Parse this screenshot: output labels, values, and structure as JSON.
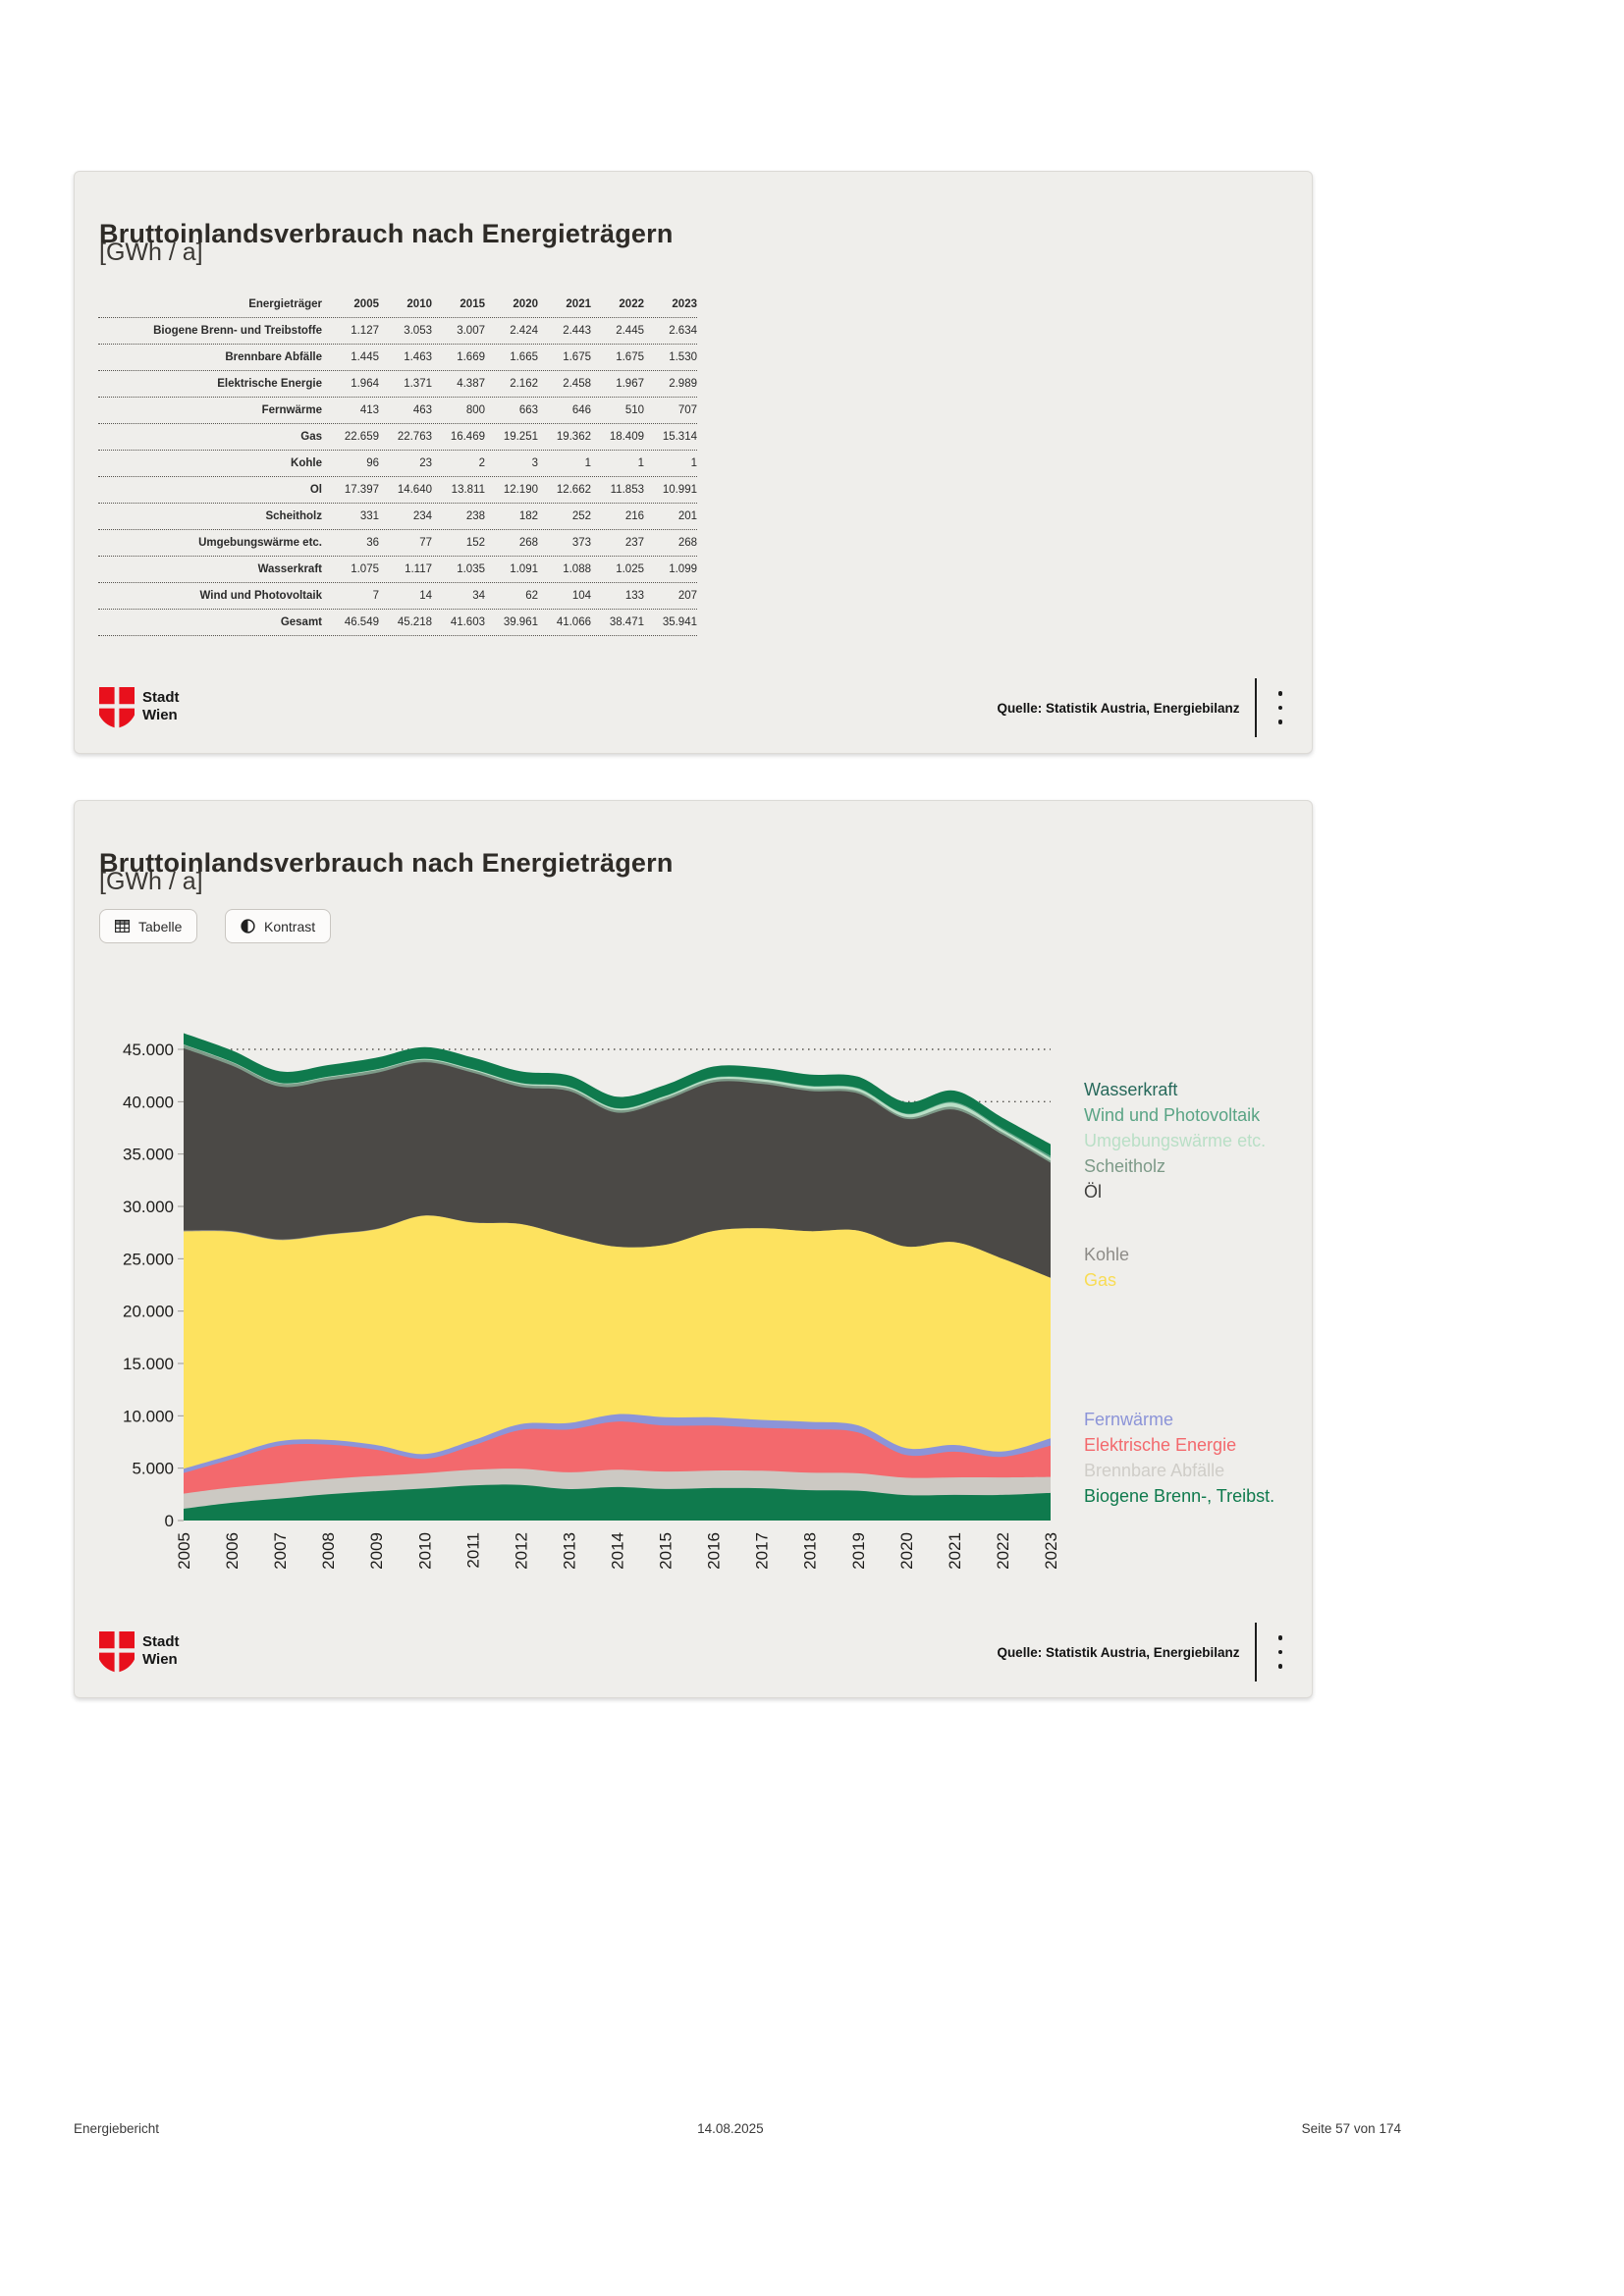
{
  "logo": {
    "line1": "Stadt",
    "line2": "Wien",
    "red": "#e8101c"
  },
  "page": {
    "footer": {
      "left": "Energiebericht",
      "center": "14.08.2025",
      "right": "Seite 57 von 174"
    }
  },
  "card_table": {
    "title": "Bruttoinlandsverbrauch nach Energieträgern",
    "subtitle": "[GWh / a]",
    "source": "Quelle: Statistik Austria, Energiebilanz",
    "table": {
      "header": [
        "Energieträger",
        "2005",
        "2010",
        "2015",
        "2020",
        "2021",
        "2022",
        "2023"
      ],
      "rows": [
        {
          "label": "Biogene Brenn- und Treibstoffe",
          "values": [
            "1.127",
            "3.053",
            "3.007",
            "2.424",
            "2.443",
            "2.445",
            "2.634"
          ]
        },
        {
          "label": "Brennbare Abfälle",
          "values": [
            "1.445",
            "1.463",
            "1.669",
            "1.665",
            "1.675",
            "1.675",
            "1.530"
          ]
        },
        {
          "label": "Elektrische Energie",
          "values": [
            "1.964",
            "1.371",
            "4.387",
            "2.162",
            "2.458",
            "1.967",
            "2.989"
          ]
        },
        {
          "label": "Fernwärme",
          "values": [
            "413",
            "463",
            "800",
            "663",
            "646",
            "510",
            "707"
          ]
        },
        {
          "label": "Gas",
          "values": [
            "22.659",
            "22.763",
            "16.469",
            "19.251",
            "19.362",
            "18.409",
            "15.314"
          ]
        },
        {
          "label": "Kohle",
          "values": [
            "96",
            "23",
            "2",
            "3",
            "1",
            "1",
            "1"
          ]
        },
        {
          "label": "Öl",
          "values": [
            "17.397",
            "14.640",
            "13.811",
            "12.190",
            "12.662",
            "11.853",
            "10.991"
          ]
        },
        {
          "label": "Scheitholz",
          "values": [
            "331",
            "234",
            "238",
            "182",
            "252",
            "216",
            "201"
          ]
        },
        {
          "label": "Umgebungswärme etc.",
          "values": [
            "36",
            "77",
            "152",
            "268",
            "373",
            "237",
            "268"
          ]
        },
        {
          "label": "Wasserkraft",
          "values": [
            "1.075",
            "1.117",
            "1.035",
            "1.091",
            "1.088",
            "1.025",
            "1.099"
          ]
        },
        {
          "label": "Wind und Photovoltaik",
          "values": [
            "7",
            "14",
            "34",
            "62",
            "104",
            "133",
            "207"
          ]
        },
        {
          "label": "Gesamt",
          "values": [
            "46.549",
            "45.218",
            "41.603",
            "39.961",
            "41.066",
            "38.471",
            "35.941"
          ]
        }
      ]
    }
  },
  "card_chart": {
    "title": "Bruttoinlandsverbrauch nach Energieträgern",
    "subtitle": "[GWh / a]",
    "source": "Quelle: Statistik Austria, Energiebilanz",
    "buttons": {
      "tabelle": "Tabelle",
      "kontrast": "Kontrast"
    }
  },
  "chart_data": {
    "type": "area",
    "stacked": true,
    "title": "Bruttoinlandsverbrauch nach Energieträgern",
    "unit": "GWh / a",
    "grid": "horizontal dotted every 5000",
    "legend_position": "right",
    "ylim": [
      0,
      45000
    ],
    "ytick_labels": [
      "0",
      "5.000",
      "10.000",
      "15.000",
      "20.000",
      "25.000",
      "30.000",
      "35.000",
      "40.000",
      "45.000"
    ],
    "x": [
      2005,
      2006,
      2007,
      2008,
      2009,
      2010,
      2011,
      2012,
      2013,
      2014,
      2015,
      2016,
      2017,
      2018,
      2019,
      2020,
      2021,
      2022,
      2023
    ],
    "series": [
      {
        "name": "Biogene Brenn-, Treibst.",
        "color": "#0f7a4d",
        "label_color": "#0f7a4d",
        "values": [
          1127,
          1700,
          2100,
          2500,
          2800,
          3053,
          3350,
          3400,
          3000,
          3200,
          3007,
          3100,
          3080,
          2900,
          2850,
          2424,
          2443,
          2445,
          2634
        ]
      },
      {
        "name": "Brennbare Abfälle",
        "color": "#ccc9c3",
        "label_color": "#cfcdc8",
        "values": [
          1445,
          1450,
          1455,
          1460,
          1460,
          1463,
          1500,
          1550,
          1600,
          1650,
          1669,
          1670,
          1670,
          1665,
          1660,
          1665,
          1675,
          1675,
          1530
        ]
      },
      {
        "name": "Elektrische Energie",
        "color": "#f3696d",
        "label_color": "#f3696d",
        "values": [
          1964,
          2700,
          3600,
          3300,
          2500,
          1371,
          2300,
          3700,
          4100,
          4600,
          4387,
          4300,
          4100,
          4150,
          3900,
          2162,
          2458,
          1967,
          2989
        ]
      },
      {
        "name": "Fernwärme",
        "color": "#8c94d8",
        "label_color": "#8c94d8",
        "values": [
          413,
          420,
          430,
          440,
          450,
          463,
          500,
          560,
          620,
          700,
          800,
          780,
          760,
          710,
          680,
          663,
          646,
          510,
          707
        ]
      },
      {
        "name": "Gas",
        "color": "#fde25f",
        "label_color": "#f8dc55",
        "values": [
          22659,
          21300,
          19200,
          19600,
          20600,
          22763,
          20800,
          19100,
          17800,
          16000,
          16469,
          17800,
          18300,
          18200,
          18600,
          19251,
          19362,
          18409,
          15314
        ]
      },
      {
        "name": "Kohle",
        "color": "#999793",
        "label_color": "#8e8c88",
        "values": [
          96,
          80,
          65,
          50,
          40,
          23,
          18,
          12,
          8,
          5,
          2,
          2,
          2,
          2,
          2,
          3,
          1,
          1,
          1
        ]
      },
      {
        "name": "Öl",
        "color": "#4b4946",
        "label_color": "#3f3e3c",
        "values": [
          17397,
          15800,
          14600,
          14700,
          14900,
          14640,
          14300,
          13100,
          13900,
          12800,
          13811,
          14200,
          13800,
          13400,
          13100,
          12190,
          12662,
          11853,
          10991
        ]
      },
      {
        "name": "Scheitholz",
        "color": "#7d9a88",
        "label_color": "#7d9a88",
        "values": [
          331,
          310,
          290,
          280,
          270,
          234,
          240,
          240,
          240,
          240,
          238,
          230,
          225,
          215,
          210,
          182,
          252,
          216,
          201
        ]
      },
      {
        "name": "Umgebungswärme etc.",
        "color": "#b9dfc6",
        "label_color": "#b9dfc6",
        "values": [
          36,
          45,
          50,
          55,
          60,
          77,
          90,
          110,
          130,
          150,
          152,
          180,
          200,
          230,
          250,
          268,
          373,
          237,
          268
        ]
      },
      {
        "name": "Wind und Photovoltaik",
        "color": "#5aa485",
        "label_color": "#5aa485",
        "values": [
          7,
          8,
          9,
          10,
          12,
          14,
          18,
          25,
          30,
          40,
          34,
          45,
          50,
          55,
          60,
          62,
          104,
          133,
          207
        ]
      },
      {
        "name": "Wasserkraft",
        "color": "#0f7a4d",
        "label_color": "#27695b",
        "values": [
          1075,
          1090,
          1100,
          1105,
          1110,
          1117,
          1110,
          1100,
          1090,
          1090,
          1035,
          1050,
          1060,
          1070,
          1080,
          1091,
          1088,
          1025,
          1099
        ]
      }
    ]
  }
}
